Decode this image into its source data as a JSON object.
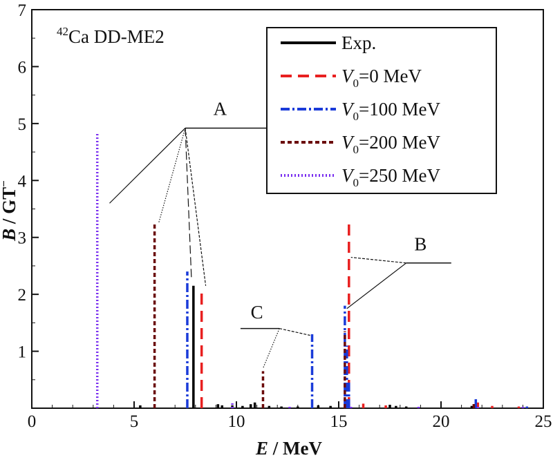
{
  "chart_data": {
    "type": "bar",
    "title": "42Ca DD-ME2",
    "title_superscript": "42",
    "title_main": "Ca DD-ME2",
    "xlabel_symbol": "E",
    "xlabel_unit": " / MeV",
    "ylabel_symbol": "B",
    "ylabel_unit": " / GT",
    "ylabel_superscript": "−",
    "xlim": [
      0,
      25
    ],
    "ylim": [
      0,
      7
    ],
    "xticks": [
      0,
      5,
      10,
      15,
      20,
      25
    ],
    "yticks": [
      1,
      2,
      3,
      4,
      5,
      6,
      7
    ],
    "grid": false,
    "legend_position": "top-right",
    "series": [
      {
        "name": "Exp.",
        "color": "#000000",
        "dash": "solid",
        "lines": [
          [
            5.3,
            0.05
          ],
          [
            7.9,
            2.15
          ],
          [
            9.1,
            0.07
          ],
          [
            9.3,
            0.05
          ],
          [
            9.8,
            0.05
          ],
          [
            10.3,
            0.04
          ],
          [
            10.7,
            0.07
          ],
          [
            10.9,
            0.1
          ],
          [
            11.6,
            0.04
          ],
          [
            12.2,
            0.03
          ],
          [
            13.0,
            0.03
          ],
          [
            14.0,
            0.05
          ],
          [
            14.6,
            0.04
          ],
          [
            17.5,
            0.06
          ],
          [
            17.8,
            0.04
          ],
          [
            18.3,
            0.03
          ],
          [
            21.5,
            0.04
          ],
          [
            21.7,
            0.06
          ]
        ]
      },
      {
        "name": "V0=0 MeV",
        "legend_prefix": "V",
        "legend_sub": "0",
        "legend_suffix": "=0 MeV",
        "color": "#e82020",
        "dash": "longdash",
        "lines": [
          [
            8.3,
            2.05
          ],
          [
            15.5,
            3.3
          ],
          [
            16.2,
            0.08
          ],
          [
            17.3,
            0.05
          ],
          [
            21.8,
            0.1
          ],
          [
            22.5,
            0.04
          ],
          [
            23.8,
            0.03
          ]
        ]
      },
      {
        "name": "V0=100 MeV",
        "legend_prefix": "V",
        "legend_sub": "0",
        "legend_suffix": "=100 MeV",
        "color": "#1a3bd9",
        "dash": "dashdot",
        "lines": [
          [
            7.6,
            2.4
          ],
          [
            13.7,
            1.3
          ],
          [
            15.3,
            1.8
          ],
          [
            15.4,
            1.1
          ],
          [
            15.5,
            0.45
          ],
          [
            21.7,
            0.18
          ],
          [
            24.2,
            0.03
          ]
        ]
      },
      {
        "name": "V0=200 MeV",
        "legend_prefix": "V",
        "legend_sub": "0",
        "legend_suffix": "=200 MeV",
        "color": "#6b0c0c",
        "dash": "shortdash",
        "lines": [
          [
            6.0,
            3.27
          ],
          [
            11.3,
            0.65
          ],
          [
            15.3,
            1.35
          ],
          [
            21.6,
            0.12
          ]
        ]
      },
      {
        "name": "V0=250 MeV",
        "legend_prefix": "V",
        "legend_sub": "0",
        "legend_suffix": "=250 MeV",
        "color": "#7a2ff0",
        "dash": "dotted",
        "lines": [
          [
            3.2,
            4.82
          ],
          [
            9.8,
            0.12
          ],
          [
            12.6,
            0.04
          ],
          [
            15.6,
            0.05
          ],
          [
            18.9,
            0.03
          ],
          [
            21.8,
            0.06
          ],
          [
            24.0,
            0.03
          ]
        ]
      }
    ],
    "annotations": [
      {
        "label": "A",
        "hub": [
          7.5,
          4.92
        ],
        "bar_to": [
          19.0,
          4.92
        ],
        "label_at": [
          9.2,
          5.15
        ],
        "targets": [
          [
            3.8,
            3.6
          ],
          [
            6.2,
            3.25
          ],
          [
            7.8,
            2.3
          ],
          [
            8.5,
            2.15
          ]
        ],
        "target_styles": [
          "solid",
          "dotted",
          "longdash",
          "shortdash"
        ]
      },
      {
        "label": "B",
        "hub": [
          18.3,
          2.55
        ],
        "bar_to": [
          20.5,
          2.55
        ],
        "label_at": [
          19.0,
          2.77
        ],
        "targets": [
          [
            15.6,
            2.65
          ],
          [
            15.4,
            1.75
          ]
        ],
        "target_styles": [
          "shortdash",
          "solid"
        ]
      },
      {
        "label": "C",
        "hub": [
          12.1,
          1.4
        ],
        "bar_to": [
          10.2,
          1.4
        ],
        "label_at": [
          11.0,
          1.58
        ],
        "targets": [
          [
            11.3,
            0.7
          ],
          [
            13.6,
            1.28
          ]
        ],
        "target_styles": [
          "dotted",
          "shortdash"
        ]
      }
    ]
  }
}
